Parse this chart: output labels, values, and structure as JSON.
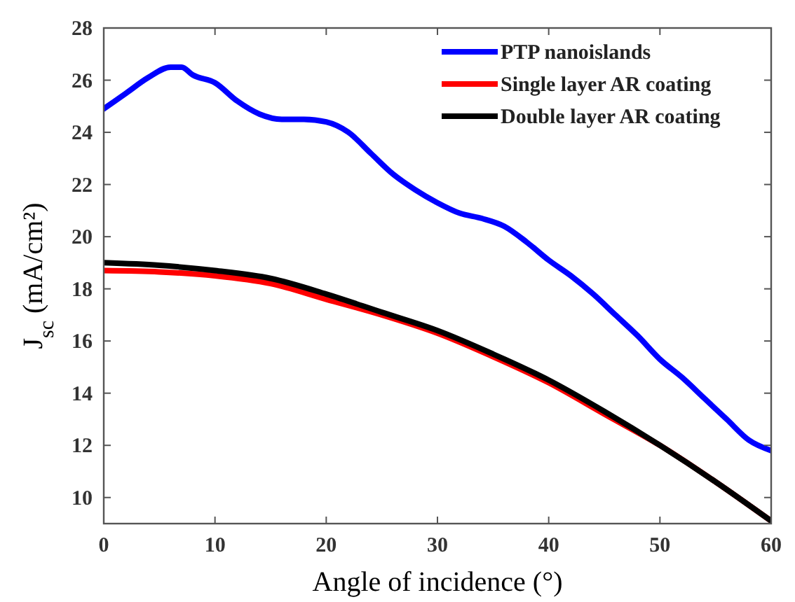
{
  "chart_data": {
    "type": "line",
    "xlabel": "Angle of incidence (°)",
    "ylabel": "J$_{sc}$ (mA/cm²)",
    "xlim": [
      0,
      60
    ],
    "ylim": [
      9,
      28
    ],
    "xticks": [
      0,
      10,
      20,
      30,
      40,
      50,
      60
    ],
    "yticks": [
      10,
      12,
      14,
      16,
      18,
      20,
      22,
      24,
      26,
      28
    ],
    "legend": "top right",
    "grid": false,
    "marker": "none",
    "line_style": "solid",
    "series": [
      {
        "name": "PTP nanoislands",
        "color": "#0000ff",
        "x": [
          0,
          2,
          4,
          6,
          7,
          8,
          10,
          12,
          14,
          16,
          18,
          20,
          22,
          24,
          26,
          28,
          30,
          32,
          34,
          36,
          38,
          40,
          42,
          44,
          46,
          48,
          50,
          52,
          54,
          56,
          58,
          60
        ],
        "values": [
          24.9,
          25.5,
          26.1,
          26.5,
          26.5,
          26.2,
          25.9,
          25.2,
          24.7,
          24.5,
          24.5,
          24.4,
          24.0,
          23.2,
          22.4,
          21.8,
          21.3,
          20.9,
          20.7,
          20.4,
          19.8,
          19.1,
          18.5,
          17.8,
          17.0,
          16.2,
          15.3,
          14.6,
          13.8,
          13.0,
          12.2,
          11.8
        ]
      },
      {
        "name": "Single layer AR coating",
        "color": "#ff0000",
        "x": [
          0,
          5,
          10,
          15,
          20,
          25,
          30,
          35,
          40,
          45,
          50,
          55,
          60
        ],
        "values": [
          18.7,
          18.65,
          18.5,
          18.2,
          17.6,
          17.0,
          16.3,
          15.4,
          14.4,
          13.2,
          12.0,
          10.6,
          9.1
        ]
      },
      {
        "name": "Double layer AR coating",
        "color": "#000000",
        "x": [
          0,
          5,
          10,
          15,
          20,
          25,
          30,
          35,
          40,
          45,
          50,
          55,
          60
        ],
        "values": [
          19.0,
          18.9,
          18.7,
          18.4,
          17.8,
          17.1,
          16.4,
          15.5,
          14.5,
          13.3,
          12.0,
          10.6,
          9.1
        ]
      }
    ]
  }
}
